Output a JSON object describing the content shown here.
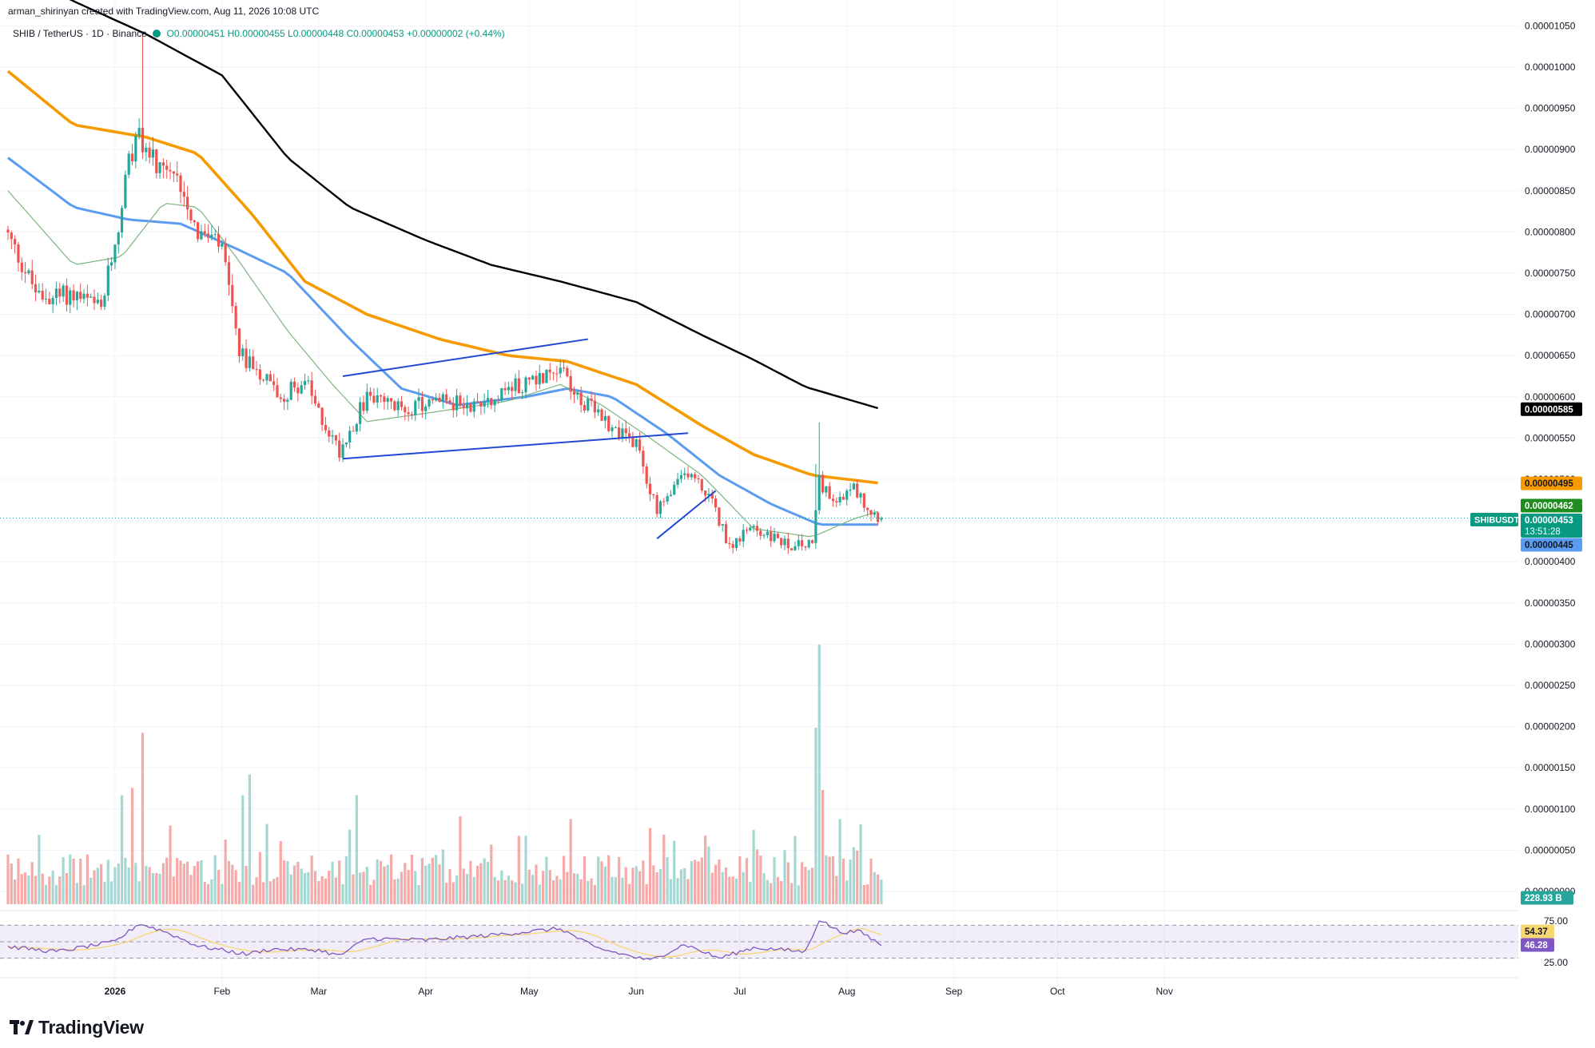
{
  "header": {
    "attribution": "arman_shirinyan created with TradingView.com, Aug 11, 2026 10:08 UTC",
    "symbol": "SHIB / TetherUS · 1D · Binance",
    "open": "O0.00000451",
    "high": "H0.00000455",
    "low": "L0.00000448",
    "close": "C0.00000453",
    "change": "+0.00000002 (+0.44%)"
  },
  "brand": {
    "name": "TradingView"
  },
  "colors": {
    "up": "#26a69a",
    "down": "#ef5350",
    "ma200": "#000000",
    "ma100": "#f59b00",
    "ma50": "#5b9cf0",
    "ma20": "#7cb57f",
    "trendline": "#2149d3",
    "rsi": "#7e57c2",
    "rsi_ma": "#f7d774"
  },
  "chart_data": [
    {
      "type": "candlestick",
      "symbol": "SHIBUSDT",
      "timeframe": "1D",
      "x_start": "2025-12-01",
      "x_end": "2026-08-11",
      "x_ticks": [
        "2026",
        "Feb",
        "Mar",
        "Apr",
        "May",
        "Jun",
        "Jul",
        "Aug",
        "Sep",
        "Oct",
        "Nov"
      ],
      "y_ticks": [
        "0.00001050",
        "0.00001000",
        "0.00000950",
        "0.00000900",
        "0.00000850",
        "0.00000800",
        "0.00000750",
        "0.00000700",
        "0.00000650",
        "0.00000600",
        "0.00000550",
        "0.00000500",
        "0.00000450",
        "0.00000400",
        "0.00000350",
        "0.00000300",
        "0.00000250",
        "0.00000200",
        "0.00000150",
        "0.00000100",
        "0.00000050",
        "0.00000000"
      ],
      "ylim": [
        0.0,
        1.05e-05
      ],
      "close_anchors": [
        [
          "2025-12-01",
          7.95e-06
        ],
        [
          "2025-12-10",
          7.2e-06
        ],
        [
          "2025-12-20",
          7.25e-06
        ],
        [
          "2025-12-28",
          7.05e-06
        ],
        [
          "2026-01-02",
          8.1e-06
        ],
        [
          "2026-01-05",
          8.8e-06
        ],
        [
          "2026-01-08",
          9.2e-06
        ],
        [
          "2026-01-14",
          8.7e-06
        ],
        [
          "2026-01-20",
          8.6e-06
        ],
        [
          "2026-01-25",
          8e-06
        ],
        [
          "2026-02-01",
          7.8e-06
        ],
        [
          "2026-02-06",
          6.5e-06
        ],
        [
          "2026-02-10",
          6.4e-06
        ],
        [
          "2026-02-18",
          6e-06
        ],
        [
          "2026-02-25",
          6.2e-06
        ],
        [
          "2026-03-01",
          5.8e-06
        ],
        [
          "2026-03-07",
          5.35e-06
        ],
        [
          "2026-03-15",
          6e-06
        ],
        [
          "2026-03-25",
          5.85e-06
        ],
        [
          "2026-04-05",
          5.95e-06
        ],
        [
          "2026-04-15",
          5.9e-06
        ],
        [
          "2026-04-25",
          6.1e-06
        ],
        [
          "2026-05-05",
          6.25e-06
        ],
        [
          "2026-05-10",
          6.4e-06
        ],
        [
          "2026-05-15",
          6e-06
        ],
        [
          "2026-05-22",
          5.75e-06
        ],
        [
          "2026-06-01",
          5.4e-06
        ],
        [
          "2026-06-07",
          4.6e-06
        ],
        [
          "2026-06-16",
          5.1e-06
        ],
        [
          "2026-06-22",
          4.8e-06
        ],
        [
          "2026-06-28",
          4.2e-06
        ],
        [
          "2026-07-05",
          4.4e-06
        ],
        [
          "2026-07-15",
          4.2e-06
        ],
        [
          "2026-07-22",
          4.2e-06
        ],
        [
          "2026-07-24",
          5e-06
        ],
        [
          "2026-07-28",
          4.7e-06
        ],
        [
          "2026-08-03",
          4.9e-06
        ],
        [
          "2026-08-07",
          4.65e-06
        ],
        [
          "2026-08-11",
          4.53e-06
        ]
      ],
      "last_open": 4.51e-06,
      "last_high": 4.55e-06,
      "last_low": 4.48e-06,
      "last_close": 4.53e-06,
      "moving_averages": [
        {
          "id": "ma200",
          "points": [
            [
              "2025-12-01",
              1.12e-05
            ],
            [
              "2025-12-20",
              1.08e-05
            ],
            [
              "2026-01-10",
              1.04e-05
            ],
            [
              "2026-02-01",
              9.9e-06
            ],
            [
              "2026-02-20",
              8.9e-06
            ],
            [
              "2026-03-10",
              8.3e-06
            ],
            [
              "2026-04-01",
              7.9e-06
            ],
            [
              "2026-04-20",
              7.6e-06
            ],
            [
              "2026-05-10",
              7.4e-06
            ],
            [
              "2026-06-01",
              7.15e-06
            ],
            [
              "2026-06-20",
              6.75e-06
            ],
            [
              "2026-07-05",
              6.45e-06
            ],
            [
              "2026-07-20",
              6.12e-06
            ],
            [
              "2026-08-11",
              5.85e-06
            ]
          ]
        },
        {
          "id": "ma100",
          "points": [
            [
              "2025-12-01",
              9.95e-06
            ],
            [
              "2025-12-20",
              9.3e-06
            ],
            [
              "2026-01-10",
              9.15e-06
            ],
            [
              "2026-01-25",
              8.95e-06
            ],
            [
              "2026-02-10",
              8.2e-06
            ],
            [
              "2026-02-25",
              7.4e-06
            ],
            [
              "2026-03-15",
              7e-06
            ],
            [
              "2026-04-05",
              6.7e-06
            ],
            [
              "2026-04-25",
              6.5e-06
            ],
            [
              "2026-05-12",
              6.43e-06
            ],
            [
              "2026-06-01",
              6.15e-06
            ],
            [
              "2026-06-20",
              5.65e-06
            ],
            [
              "2026-07-05",
              5.3e-06
            ],
            [
              "2026-07-22",
              5.05e-06
            ],
            [
              "2026-08-11",
              4.95e-06
            ]
          ]
        },
        {
          "id": "ma50",
          "points": [
            [
              "2025-12-01",
              8.9e-06
            ],
            [
              "2025-12-20",
              8.3e-06
            ],
            [
              "2026-01-05",
              8.15e-06
            ],
            [
              "2026-01-20",
              8.1e-06
            ],
            [
              "2026-02-05",
              7.8e-06
            ],
            [
              "2026-02-20",
              7.5e-06
            ],
            [
              "2026-03-10",
              6.7e-06
            ],
            [
              "2026-03-25",
              6.1e-06
            ],
            [
              "2026-04-10",
              5.9e-06
            ],
            [
              "2026-04-30",
              6e-06
            ],
            [
              "2026-05-12",
              6.1e-06
            ],
            [
              "2026-05-25",
              6e-06
            ],
            [
              "2026-06-10",
              5.55e-06
            ],
            [
              "2026-06-25",
              5.05e-06
            ],
            [
              "2026-07-10",
              4.7e-06
            ],
            [
              "2026-07-24",
              4.45e-06
            ],
            [
              "2026-08-11",
              4.45e-06
            ]
          ]
        },
        {
          "id": "ma20",
          "points": [
            [
              "2025-12-01",
              8.5e-06
            ],
            [
              "2025-12-20",
              7.6e-06
            ],
            [
              "2026-01-03",
              7.7e-06
            ],
            [
              "2026-01-15",
              8.35e-06
            ],
            [
              "2026-01-25",
              8.3e-06
            ],
            [
              "2026-02-05",
              7.7e-06
            ],
            [
              "2026-02-20",
              6.8e-06
            ],
            [
              "2026-03-05",
              6.15e-06
            ],
            [
              "2026-03-15",
              5.7e-06
            ],
            [
              "2026-04-01",
              5.8e-06
            ],
            [
              "2026-04-25",
              5.95e-06
            ],
            [
              "2026-05-10",
              6.15e-06
            ],
            [
              "2026-05-22",
              5.9e-06
            ],
            [
              "2026-06-05",
              5.5e-06
            ],
            [
              "2026-06-20",
              5.05e-06
            ],
            [
              "2026-07-05",
              4.4e-06
            ],
            [
              "2026-07-22",
              4.3e-06
            ],
            [
              "2026-08-03",
              4.52e-06
            ],
            [
              "2026-08-11",
              4.62e-06
            ]
          ]
        }
      ],
      "trendlines": [
        {
          "from": [
            "2026-03-08",
            6.25e-06
          ],
          "to": [
            "2026-05-18",
            6.7e-06
          ]
        },
        {
          "from": [
            "2026-03-08",
            5.25e-06
          ],
          "to": [
            "2026-06-16",
            5.56e-06
          ]
        },
        {
          "from": [
            "2026-06-07",
            4.28e-06
          ],
          "to": [
            "2026-06-24",
            4.86e-06
          ]
        }
      ],
      "price_labels": [
        {
          "text": "0.00000585",
          "value": 5.85e-06,
          "style": "ma200"
        },
        {
          "text": "0.00000495",
          "value": 4.95e-06,
          "style": "ma100"
        },
        {
          "text": "0.00000462",
          "value": 4.62e-06,
          "style": "ma20"
        },
        {
          "text": "0.00000453",
          "value": 4.53e-06,
          "style": "last",
          "symbol": "SHIBUSDT",
          "countdown": "13:51:28"
        },
        {
          "text": "0.00000445",
          "value": 4.45e-06,
          "style": "ma50"
        }
      ]
    },
    {
      "type": "bar",
      "name": "Volume",
      "last_value_label": "228.93 B",
      "spikes": [
        [
          "2026-01-09",
          1.65
        ],
        [
          "2026-01-06",
          1.12
        ],
        [
          "2026-01-03",
          1.05
        ],
        [
          "2026-02-09",
          1.25
        ],
        [
          "2026-02-07",
          1.05
        ],
        [
          "2026-03-12",
          1.05
        ],
        [
          "2026-05-13",
          0.82
        ],
        [
          "2026-07-24",
          2.5
        ],
        [
          "2026-07-23",
          1.7
        ],
        [
          "2026-07-25",
          1.1
        ],
        [
          "2026-07-30",
          0.82
        ]
      ]
    },
    {
      "type": "line",
      "name": "RSI",
      "y_ticks": [
        "75.00",
        "25.00"
      ],
      "ylim": [
        20,
        80
      ],
      "band": [
        30,
        70
      ],
      "rsi_label": "46.28",
      "rsi_ma_label": "54.37",
      "points": [
        [
          "2025-12-01",
          44
        ],
        [
          "2025-12-15",
          38
        ],
        [
          "2026-01-01",
          50
        ],
        [
          "2026-01-08",
          72
        ],
        [
          "2026-01-15",
          63
        ],
        [
          "2026-01-25",
          45
        ],
        [
          "2026-02-08",
          35
        ],
        [
          "2026-02-15",
          41
        ],
        [
          "2026-03-01",
          40
        ],
        [
          "2026-03-07",
          33
        ],
        [
          "2026-03-15",
          54
        ],
        [
          "2026-04-01",
          52
        ],
        [
          "2026-04-20",
          58
        ],
        [
          "2026-05-10",
          66
        ],
        [
          "2026-05-20",
          43
        ],
        [
          "2026-06-05",
          27
        ],
        [
          "2026-06-15",
          47
        ],
        [
          "2026-06-25",
          30
        ],
        [
          "2026-07-05",
          43
        ],
        [
          "2026-07-20",
          38
        ],
        [
          "2026-07-24",
          77
        ],
        [
          "2026-07-30",
          62
        ],
        [
          "2026-08-05",
          62
        ],
        [
          "2026-08-11",
          46
        ]
      ]
    }
  ]
}
